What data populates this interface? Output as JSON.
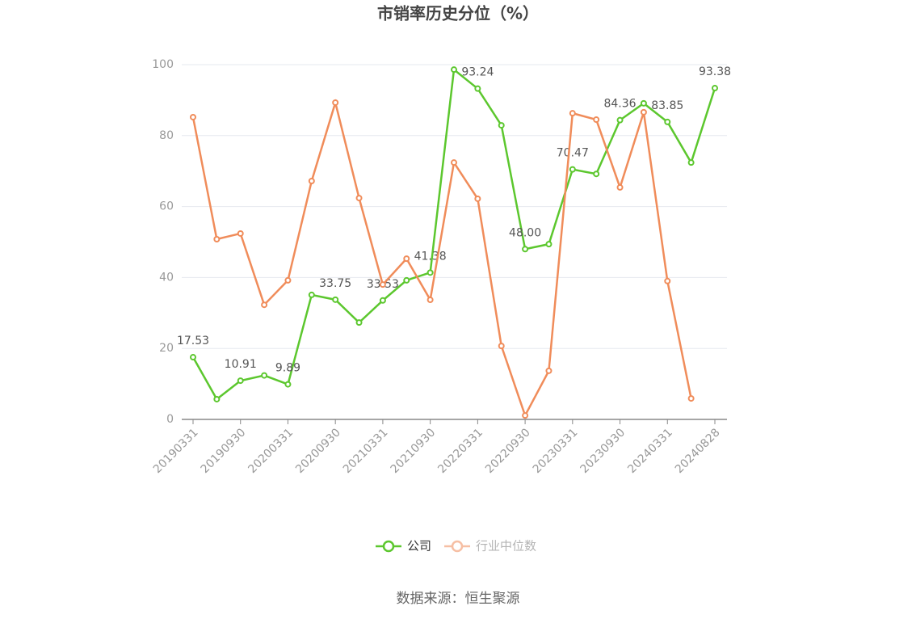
{
  "chart_data": {
    "type": "line",
    "title": "市销率历史分位（%）",
    "source": "数据来源：恒生聚源",
    "categories": [
      "20190331",
      null,
      "20190930",
      null,
      "20200331",
      null,
      "20200930",
      null,
      "20210331",
      null,
      "20210930",
      null,
      "20220331",
      null,
      "20220930",
      null,
      "20230331",
      null,
      "20230930",
      null,
      "20240331",
      null,
      "20240828"
    ],
    "series": [
      {
        "name": "公司",
        "color": "#5cc72e",
        "values": [
          17.53,
          5.7,
          10.91,
          12.4,
          9.89,
          35.1,
          33.75,
          27.3,
          33.53,
          39.2,
          41.38,
          98.6,
          93.24,
          82.9,
          48.0,
          49.4,
          70.47,
          69.2,
          84.36,
          89.1,
          83.85,
          72.4,
          93.38
        ],
        "value_labels": [
          "17.53",
          null,
          "10.91",
          null,
          "9.89",
          null,
          "33.75",
          null,
          "33.53",
          null,
          "41.38",
          null,
          "93.24",
          null,
          "48.00",
          null,
          "70.47",
          null,
          "84.36",
          null,
          "83.85",
          null,
          "93.38"
        ]
      },
      {
        "name": "行业中位数",
        "color": "#f08c5a",
        "values": [
          85.2,
          50.8,
          52.4,
          32.3,
          39.2,
          67.2,
          89.3,
          62.4,
          38.0,
          45.3,
          33.7,
          72.4,
          62.2,
          20.7,
          1.1,
          13.7,
          86.3,
          84.5,
          65.4,
          86.6,
          39.0,
          5.9,
          null
        ]
      }
    ],
    "ylim": [
      0,
      100
    ],
    "yticks": [
      0,
      20,
      40,
      60,
      80,
      100
    ],
    "grid": true,
    "legend": "bottom"
  }
}
